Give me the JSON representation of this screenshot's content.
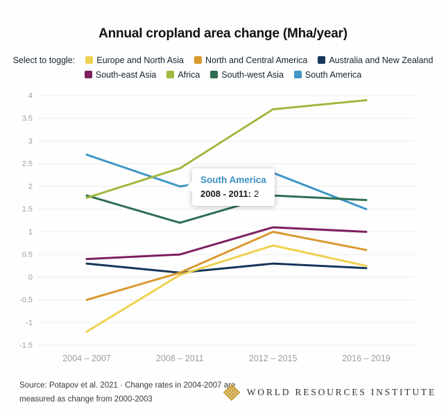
{
  "title": "Annual cropland area change (Mha/year)",
  "legend": {
    "prompt": "Select to toggle:"
  },
  "chart_data": {
    "type": "line",
    "categories": [
      "2004 – 2007",
      "2008 – 2011",
      "2012 – 2015",
      "2016 – 2019"
    ],
    "series": [
      {
        "name": "Europe and North Asia",
        "color": "#efd24f",
        "values": [
          -1.2,
          0.05,
          0.7,
          0.25
        ]
      },
      {
        "name": "North and Central America",
        "color": "#d9992f",
        "values": [
          -0.5,
          0.1,
          1.0,
          0.6
        ]
      },
      {
        "name": "Australia and New Zealand",
        "color": "#16365c",
        "values": [
          0.3,
          0.1,
          0.3,
          0.2
        ]
      },
      {
        "name": "South-east Asia",
        "color": "#7d1f5f",
        "values": [
          0.4,
          0.5,
          1.1,
          1.0
        ]
      },
      {
        "name": "Africa",
        "color": "#a0b83f",
        "values": [
          1.75,
          2.4,
          3.7,
          3.9
        ]
      },
      {
        "name": "South-west Asia",
        "color": "#2e6f51",
        "values": [
          1.8,
          1.2,
          1.8,
          1.7
        ]
      },
      {
        "name": "South America",
        "color": "#3f96c6",
        "values": [
          2.7,
          2.0,
          2.3,
          1.5
        ]
      }
    ],
    "ylim": [
      -1.5,
      4
    ],
    "ytick_step": 0.5,
    "grid": true,
    "legend_position": "top",
    "axis_label_color": "#9d9d9d",
    "grid_color": "#ececec"
  },
  "tooltip": {
    "series": "South America",
    "label": "2008 - 2011:",
    "value": "2",
    "color": "#3d8fc0"
  },
  "footer": {
    "source_line1": "Source: Potapov et al. 2021 · Change rates in 2004-2007 are",
    "source_line2": "measured as change from 2000-2003",
    "logo_text": "WORLD RESOURCES INSTITUTE"
  }
}
